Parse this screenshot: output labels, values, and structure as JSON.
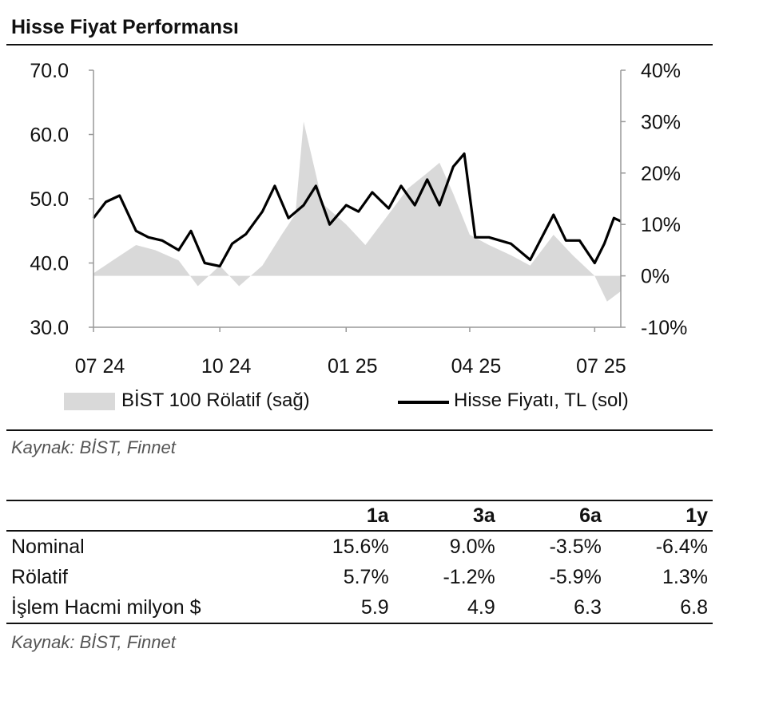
{
  "title": "Hisse Fiyat Performansı",
  "chart_data": {
    "type": "line",
    "xlabel": "",
    "x_ticks": [
      "07 24",
      "10 24",
      "01 25",
      "04 25",
      "07 25"
    ],
    "y_left": {
      "ticks": [
        "70.0",
        "60.0",
        "50.0",
        "40.0",
        "30.0"
      ],
      "ylim": [
        30,
        70
      ]
    },
    "y_right": {
      "ticks": [
        "40%",
        "30%",
        "20%",
        "10%",
        "0%",
        "-10%"
      ],
      "ylim": [
        -10,
        40
      ]
    },
    "legend_placement": "bottom",
    "grid": false,
    "series": [
      {
        "name": "BİST 100 Rölatif (sağ)",
        "kind": "area",
        "axis": "right",
        "color": "#d9d9d9",
        "x": [
          "2024-07-01",
          "2024-07-15",
          "2024-08-01",
          "2024-08-15",
          "2024-09-01",
          "2024-09-15",
          "2024-10-01",
          "2024-10-15",
          "2024-11-01",
          "2024-11-15",
          "2024-11-25",
          "2024-12-01",
          "2024-12-15",
          "2025-01-01",
          "2025-01-15",
          "2025-02-01",
          "2025-02-15",
          "2025-03-01",
          "2025-03-10",
          "2025-03-20",
          "2025-04-01",
          "2025-04-15",
          "2025-05-01",
          "2025-05-15",
          "2025-06-01",
          "2025-06-15",
          "2025-07-01",
          "2025-07-10",
          "2025-07-20"
        ],
        "values": [
          0.5,
          3,
          6,
          5,
          3,
          -2,
          2,
          -2,
          2,
          8,
          12,
          30,
          14,
          10,
          6,
          12,
          17,
          20,
          22,
          16,
          8,
          6,
          4,
          2,
          8,
          4,
          0,
          -5,
          -3
        ]
      },
      {
        "name": "Hisse Fiyatı, TL (sol)",
        "kind": "line",
        "axis": "left",
        "color": "#000000",
        "x": [
          "2024-07-01",
          "2024-07-10",
          "2024-07-20",
          "2024-08-01",
          "2024-08-10",
          "2024-08-20",
          "2024-09-01",
          "2024-09-10",
          "2024-09-20",
          "2024-10-01",
          "2024-10-10",
          "2024-10-20",
          "2024-11-01",
          "2024-11-10",
          "2024-11-20",
          "2024-12-01",
          "2024-12-10",
          "2024-12-20",
          "2025-01-01",
          "2025-01-10",
          "2025-01-20",
          "2025-02-01",
          "2025-02-10",
          "2025-02-20",
          "2025-03-01",
          "2025-03-10",
          "2025-03-20",
          "2025-03-28",
          "2025-04-05",
          "2025-04-15",
          "2025-05-01",
          "2025-05-15",
          "2025-06-01",
          "2025-06-10",
          "2025-06-20",
          "2025-07-01",
          "2025-07-08",
          "2025-07-15",
          "2025-07-20"
        ],
        "values": [
          47,
          49.5,
          50.5,
          45,
          44,
          43.5,
          42,
          45,
          40,
          39.5,
          43,
          44.5,
          48,
          52,
          47,
          49,
          52,
          46,
          49,
          48,
          51,
          48.5,
          52,
          49,
          53,
          49,
          55,
          57,
          44,
          44,
          43,
          40.5,
          47.5,
          43.5,
          43.5,
          40,
          43,
          47,
          46.5
        ]
      }
    ]
  },
  "legend": {
    "area_label": "BİST 100 Rölatif (sağ)",
    "line_label": "Hisse Fiyatı, TL (sol)"
  },
  "source_chart": "Kaynak: BİST, Finnet",
  "table": {
    "headers": [
      "",
      "1a",
      "3a",
      "6a",
      "1y"
    ],
    "rows": [
      {
        "label": "Nominal",
        "values": [
          "15.6%",
          "9.0%",
          "-3.5%",
          "-6.4%"
        ]
      },
      {
        "label": "Rölatif",
        "values": [
          "5.7%",
          "-1.2%",
          "-5.9%",
          "1.3%"
        ]
      },
      {
        "label": "İşlem Hacmi milyon $",
        "values": [
          "5.9",
          "4.9",
          "6.3",
          "6.8"
        ]
      }
    ]
  },
  "source_table": "Kaynak: BİST, Finnet"
}
